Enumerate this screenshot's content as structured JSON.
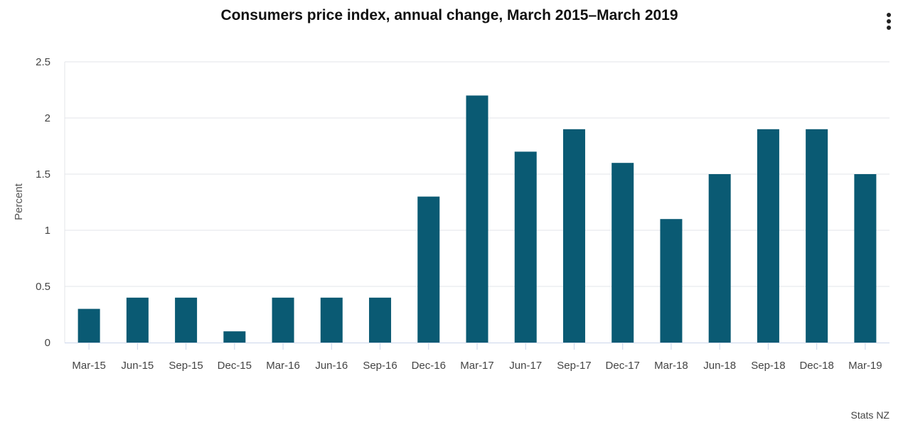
{
  "header": {
    "menu_icon": "more-vertical-icon"
  },
  "colors": {
    "bar": "#0a5a73",
    "grid": "#e3e6ea",
    "axis": "#ccd6eb"
  },
  "chart_data": {
    "type": "bar",
    "title": "Consumers price index, annual change, March 2015–March 2019",
    "xlabel": "",
    "ylabel": "Percent",
    "ylim": [
      0,
      2.5
    ],
    "yticks": [
      "0",
      "0.5",
      "1",
      "1.5",
      "2",
      "2.5"
    ],
    "ytick_values": [
      0,
      0.5,
      1,
      1.5,
      2,
      2.5
    ],
    "categories": [
      "Mar-15",
      "Jun-15",
      "Sep-15",
      "Dec-15",
      "Mar-16",
      "Jun-16",
      "Sep-16",
      "Dec-16",
      "Mar-17",
      "Jun-17",
      "Sep-17",
      "Dec-17",
      "Mar-18",
      "Jun-18",
      "Sep-18",
      "Dec-18",
      "Mar-19"
    ],
    "series": [
      {
        "name": "Annual change",
        "values": [
          0.3,
          0.4,
          0.4,
          0.1,
          0.4,
          0.4,
          0.4,
          1.3,
          2.2,
          1.7,
          1.9,
          1.6,
          1.1,
          1.5,
          1.9,
          1.9,
          1.5
        ]
      }
    ],
    "grid": true,
    "legend": "none",
    "credit": "Stats NZ"
  }
}
